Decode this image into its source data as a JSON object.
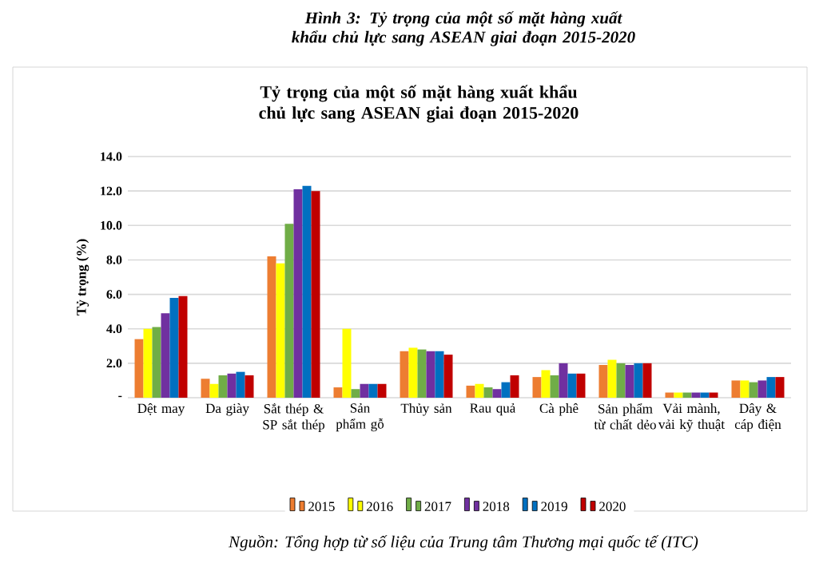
{
  "chart_data": {
    "type": "bar",
    "title": "Hình 3: Tỷ trọng của một số mặt hàng xuất khẩu chủ lực sang ASEAN giai đoạn 2015-2020",
    "subtitle": "Tỷ trọng của một số mặt hàng xuất khẩu chủ lực sang ASEAN giai đoạn 2015-2020",
    "ylabel": "Tỷ trọng (%)",
    "annotations": [
      "Nguồn: Tổng hợp từ số liệu của Trung tâm Thương mại quốc tế (ITC)"
    ],
    "categories": [
      "Dệt may",
      "Da giày",
      "Sắt thép & SP sắt thép",
      "Sản phẩm gỗ",
      "Thủy sản",
      "Rau quả",
      "Cà phê",
      "Sản phẩm từ chất dẻo",
      "Vải mành, vải kỹ thuật",
      "Dây & cáp điện"
    ],
    "series": [
      {
        "name": "2015",
        "color": "#ed7d31",
        "values": [
          3.4,
          1.1,
          8.2,
          0.6,
          2.7,
          0.7,
          1.2,
          1.9,
          0.3,
          1.0
        ]
      },
      {
        "name": "2016",
        "color": "#ffff00",
        "values": [
          4.0,
          0.8,
          7.8,
          4.0,
          2.9,
          0.8,
          1.6,
          2.2,
          0.3,
          1.0
        ]
      },
      {
        "name": "2017",
        "color": "#70ad47",
        "values": [
          4.1,
          1.3,
          10.1,
          0.5,
          2.8,
          0.6,
          1.3,
          2.0,
          0.3,
          0.9
        ]
      },
      {
        "name": "2018",
        "color": "#7030a0",
        "values": [
          4.9,
          1.4,
          12.1,
          0.8,
          2.7,
          0.5,
          2.0,
          1.9,
          0.3,
          1.0
        ]
      },
      {
        "name": "2019",
        "color": "#0070c0",
        "values": [
          5.8,
          1.5,
          12.3,
          0.8,
          2.7,
          0.9,
          1.4,
          2.0,
          0.3,
          1.2
        ]
      },
      {
        "name": "2020",
        "color": "#c00000",
        "values": [
          5.9,
          1.3,
          12.0,
          0.8,
          2.5,
          1.3,
          1.4,
          2.0,
          0.3,
          1.2
        ]
      }
    ],
    "ylim": [
      0,
      14
    ],
    "yticks": [
      {
        "value": 0,
        "label": "-"
      },
      {
        "value": 2,
        "label": "2.0"
      },
      {
        "value": 4,
        "label": "4.0"
      },
      {
        "value": 6,
        "label": "6.0"
      },
      {
        "value": 8,
        "label": "8.0"
      },
      {
        "value": 10,
        "label": "10.0"
      },
      {
        "value": 12,
        "label": "12.0"
      },
      {
        "value": 14,
        "label": "14.0"
      }
    ],
    "grid": "y",
    "legend": "bottom"
  }
}
